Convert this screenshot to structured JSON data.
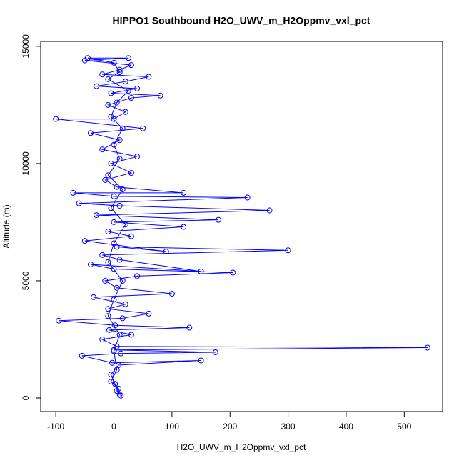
{
  "chart_data": {
    "type": "line",
    "markers": true,
    "title": "HIPPO1 Southbound H2O_UWV_m_H2Oppmv_vxl_pct",
    "x_label": "H2O_UWV_m_H2Oppmv_vxl_pct",
    "y_label": "Altitude (m)",
    "xlim": [
      -126,
      566
    ],
    "ylim": [
      -580,
      15210
    ],
    "xticks": [
      -100,
      0,
      100,
      200,
      300,
      400,
      500
    ],
    "yticks": [
      0,
      5000,
      10000,
      15000
    ],
    "grid": false,
    "series": [
      {
        "color": "#0000ff",
        "x": [
          5,
          10,
          2,
          -5,
          8,
          150,
          -3,
          -55,
          12,
          175,
          0,
          540,
          5,
          -20,
          30,
          -8,
          130,
          2,
          -95,
          15,
          60,
          -10,
          20,
          -35,
          100,
          5,
          -15,
          40,
          205,
          0,
          -40,
          150,
          10,
          -20,
          300,
          5,
          90,
          -50,
          30,
          -10,
          120,
          0,
          180,
          -30,
          268,
          10,
          -60,
          230,
          0,
          -70,
          120,
          5,
          -15,
          30,
          -5,
          40,
          -20,
          10,
          -40,
          50,
          -100,
          0,
          20,
          -10,
          30,
          80,
          -5,
          40,
          -30,
          20,
          60,
          -20,
          10,
          30,
          -50,
          25,
          -45,
          0,
          10,
          -10,
          25,
          5,
          -5,
          15,
          0,
          10,
          -10,
          15,
          -5,
          20,
          0,
          -10,
          15,
          0,
          -10,
          10,
          0,
          5,
          -5,
          8,
          12
        ],
        "values": [
          300,
          150,
          600,
          1000,
          1400,
          1600,
          1500,
          1800,
          1900,
          1950,
          2050,
          2150,
          2200,
          2500,
          2700,
          2900,
          3000,
          3100,
          3300,
          3400,
          3600,
          3800,
          4000,
          4300,
          4450,
          4700,
          5000,
          5200,
          5350,
          5500,
          5700,
          5400,
          5900,
          6100,
          6300,
          6450,
          6250,
          6700,
          6900,
          7100,
          7300,
          7500,
          7600,
          7800,
          8000,
          8200,
          8300,
          8550,
          8600,
          8750,
          8750,
          9000,
          9300,
          9600,
          10000,
          10300,
          10600,
          11000,
          11300,
          11500,
          11900,
          11900,
          12200,
          12500,
          12800,
          12900,
          13000,
          13200,
          13300,
          13500,
          13700,
          13800,
          14000,
          14200,
          14400,
          14500,
          14500,
          14300,
          13900,
          13600,
          13100,
          12600,
          12000,
          11500,
          10800,
          10200,
          9500,
          8900,
          8100,
          7400,
          6600,
          5800,
          5000,
          4200,
          3500,
          2700,
          2000,
          1200,
          700,
          400,
          100
        ]
      }
    ]
  }
}
